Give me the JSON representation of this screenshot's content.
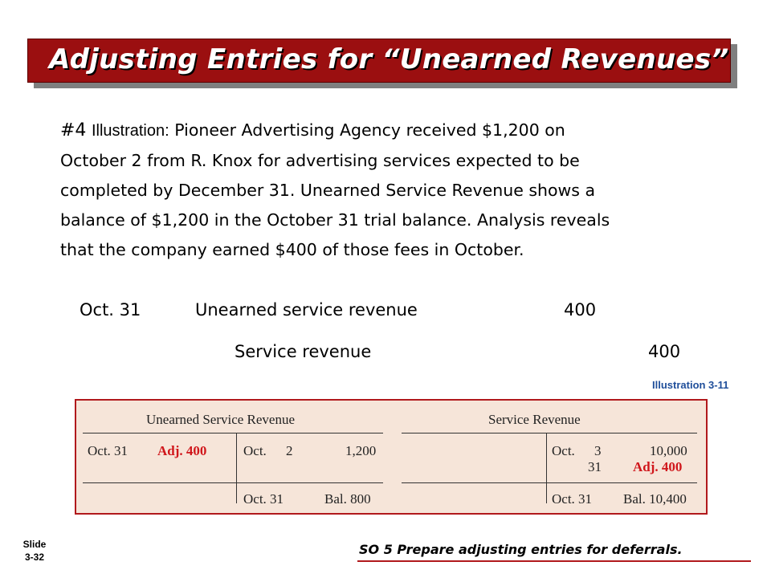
{
  "title": "Adjusting Entries for “Unearned Revenues”",
  "illustration": {
    "number": "#4",
    "label": "Illustration:",
    "text_line1": "Pioneer Advertising Agency received $1,200 on",
    "text_line2": "October 2 from R. Knox for advertising services expected to be",
    "text_line3": "completed by December 31.  Unearned Service Revenue shows a",
    "text_line4": "balance of $1,200 in the October 31 trial balance. Analysis reveals",
    "text_line5": "that the company earned $400 of those fees in October."
  },
  "journal_entry": {
    "date": "Oct. 31",
    "debit_account": "Unearned service revenue",
    "debit_amount": "400",
    "credit_account": "Service revenue",
    "credit_amount": "400"
  },
  "illustration_ref": "Illustration 3-11",
  "t_accounts": {
    "left": {
      "title": "Unearned Service Revenue",
      "debit_date": "Oct. 31",
      "debit_adj": "Adj. 400",
      "credit_month": "Oct.",
      "credit_day": "2",
      "credit_amount": "1,200",
      "bal_date": "Oct. 31",
      "bal_label": "Bal. 800"
    },
    "right": {
      "title": "Service Revenue",
      "credit_month": "Oct.",
      "credit_day1": "3",
      "credit_amount1": "10,000",
      "credit_day2": "31",
      "credit_adj": "Adj. 400",
      "bal_date": "Oct. 31",
      "bal_label": "Bal. 10,400"
    }
  },
  "slide": {
    "label": "Slide",
    "number": "3-32"
  },
  "study_objective": "SO 5  Prepare adjusting entries for deferrals.",
  "colors": {
    "title_bar": "#9b0f10",
    "accent_red": "#d0161b",
    "illustration_ref": "#1f4e9a",
    "t_account_bg": "#f6e5d9"
  }
}
